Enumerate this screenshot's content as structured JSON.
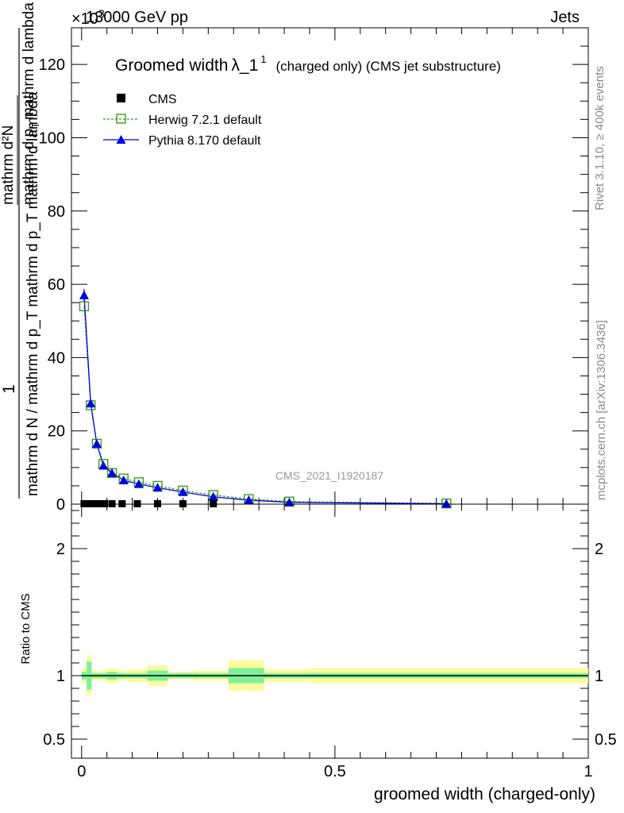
{
  "header": {
    "left_title": "13000 GeV pp",
    "right_title": "Jets",
    "exponent": "×10",
    "exponent_power": "3"
  },
  "side_labels": {
    "rivet": "Rivet 3.1.10, ≥ 400k events",
    "mcplots": "mcplots.cern.ch [arXiv:1306.3436]"
  },
  "watermark": "CMS_2021_I1920187",
  "colors": {
    "data": "#000000",
    "herwig": "#3a9a1a",
    "pythia": "#0000e6",
    "band_inner": "#7ff09a",
    "band_outer": "#fcfc9c"
  },
  "chart_data": [
    {
      "type": "line",
      "title_main": "Groomed width",
      "title_lambda": "λ_1",
      "title_sup": "1",
      "title_suffix": "(charged only) (CMS jet substructure)",
      "ylabel_frac_top": "1",
      "ylabel_frac_bottom": "mathrm d N / mathrm d p_T mathrm d p_T mathrm d lambda",
      "ylabel_num": "mathrm d²N",
      "ylabel_den_pre": "mathrm d p",
      "ylabel_den_sub": "T",
      "ylabel_den_post": "mathrm d lambda",
      "ylim": [
        0,
        130
      ],
      "xlim": [
        -0.02,
        1.0
      ],
      "yticks": [
        0,
        20,
        40,
        60,
        80,
        100,
        120
      ],
      "ytick_labels": [
        "0",
        "20",
        "40",
        "60",
        "80",
        "100",
        "120"
      ],
      "legend_position": "top-left",
      "series": [
        {
          "name": "CMS",
          "x": [
            0.005,
            0.015,
            0.025,
            0.035,
            0.045,
            0.06,
            0.08,
            0.11,
            0.15,
            0.2,
            0.26
          ],
          "values": [
            0.12,
            0.12,
            0.12,
            0.12,
            0.12,
            0.12,
            0.12,
            0.12,
            0.12,
            0.12,
            0.12
          ]
        },
        {
          "name": "Herwig 7.2.1 default",
          "x": [
            0.005,
            0.018,
            0.03,
            0.043,
            0.06,
            0.083,
            0.113,
            0.15,
            0.2,
            0.26,
            0.33,
            0.41,
            0.72
          ],
          "values": [
            54,
            27,
            16.5,
            11,
            8.5,
            7,
            6,
            5,
            3.7,
            2.5,
            1.4,
            0.7,
            0.2
          ]
        },
        {
          "name": "Pythia 8.170 default",
          "x": [
            0.005,
            0.018,
            0.03,
            0.043,
            0.06,
            0.083,
            0.113,
            0.15,
            0.2,
            0.26,
            0.33,
            0.41,
            0.72
          ],
          "values": [
            57,
            27.5,
            16.5,
            10.5,
            8.5,
            6.5,
            5.5,
            4.5,
            3.3,
            2,
            1.1,
            0.5,
            0.1
          ]
        }
      ]
    },
    {
      "type": "area",
      "ylabel": "Ratio to CMS",
      "xlabel": "groomed width (charged-only)",
      "ylim": [
        0.35,
        2.35
      ],
      "xlim": [
        -0.02,
        1.0
      ],
      "yticks": [
        0.5,
        1,
        2
      ],
      "ytick_labels": [
        "0.5",
        "1",
        "2"
      ],
      "xticks": [
        0,
        0.5,
        1
      ],
      "xtick_labels": [
        "0",
        "0.5",
        "1"
      ],
      "reference_line": 1,
      "bins": [
        [
          0.0,
          0.01,
          0.03,
          0.06
        ],
        [
          0.01,
          0.02,
          0.11,
          0.16
        ],
        [
          0.02,
          0.05,
          0.02,
          0.04
        ],
        [
          0.05,
          0.07,
          0.03,
          0.06
        ],
        [
          0.07,
          0.09,
          0.02,
          0.04
        ],
        [
          0.09,
          0.13,
          0.02,
          0.05
        ],
        [
          0.13,
          0.17,
          0.04,
          0.08
        ],
        [
          0.17,
          0.22,
          0.02,
          0.03
        ],
        [
          0.22,
          0.29,
          0.02,
          0.04
        ],
        [
          0.29,
          0.36,
          0.06,
          0.12
        ],
        [
          0.36,
          0.45,
          0.02,
          0.05
        ],
        [
          0.45,
          1.0,
          0.02,
          0.06
        ]
      ]
    }
  ]
}
